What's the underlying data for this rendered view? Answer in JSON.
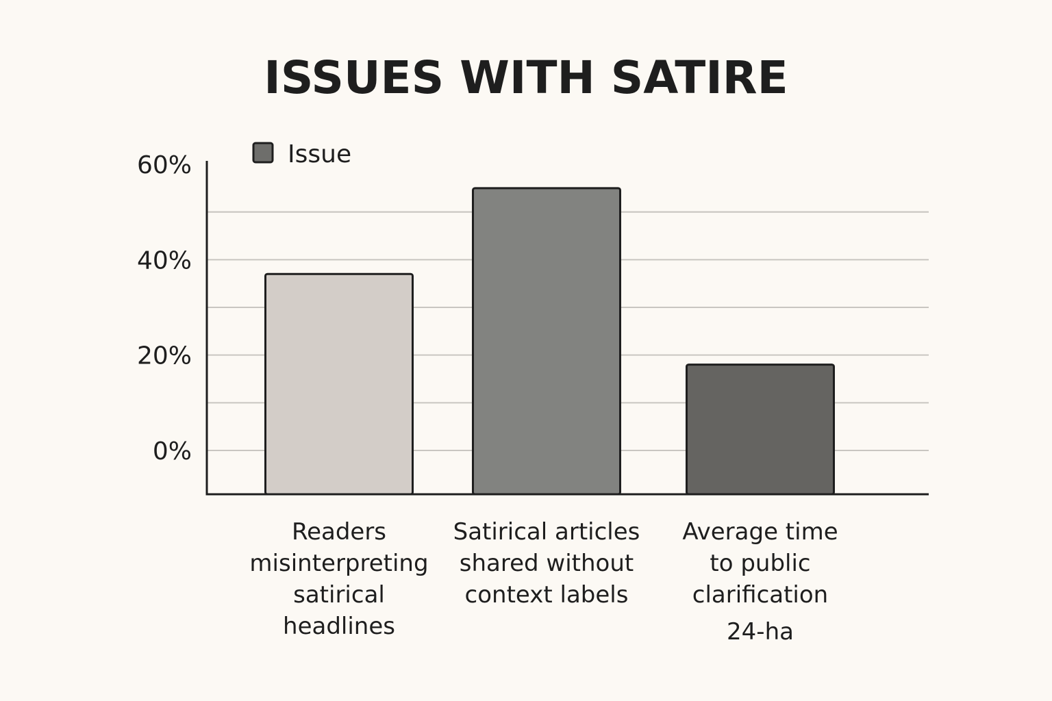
{
  "chart_data": {
    "type": "bar",
    "title": "ISSUES WITH SATIRE",
    "legend": {
      "label": "Issue",
      "color": "#6e6e6b",
      "position": "top-left"
    },
    "y_ticks": [
      "60%",
      "40%",
      "20%",
      "0%"
    ],
    "ylim": [
      0,
      60
    ],
    "grid": true,
    "categories": [
      [
        "Readers",
        "misinterpreting",
        "satirical",
        "headlines"
      ],
      [
        "Satirical articles",
        "shared without",
        "context labels"
      ],
      [
        "Average time",
        "to public",
        "clarification"
      ]
    ],
    "values": [
      37,
      55,
      18
    ],
    "bar_colors": [
      "#d3cdc8",
      "#828380",
      "#656461"
    ],
    "annotations": [
      {
        "category_index": 2,
        "text": "24-ha"
      }
    ]
  }
}
